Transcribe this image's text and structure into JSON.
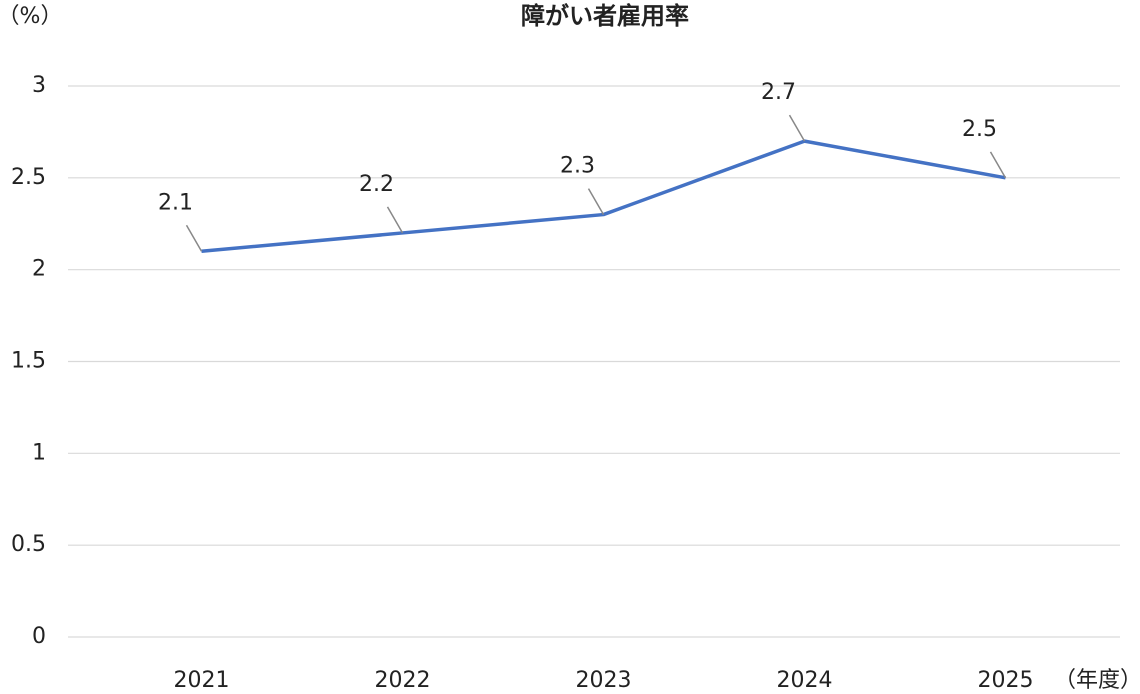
{
  "chart_data": {
    "type": "line",
    "title": "障がい者雇用率",
    "y_label": "（%）",
    "x_label": "（年度）",
    "categories": [
      "2021",
      "2022",
      "2023",
      "2024",
      "2025"
    ],
    "values": [
      2.1,
      2.2,
      2.3,
      2.7,
      2.5
    ],
    "color": "#4472c4",
    "ylim": [
      0,
      3
    ],
    "yticks": [
      0,
      0.5,
      1,
      1.5,
      2,
      2.5,
      3
    ],
    "grid": true
  }
}
